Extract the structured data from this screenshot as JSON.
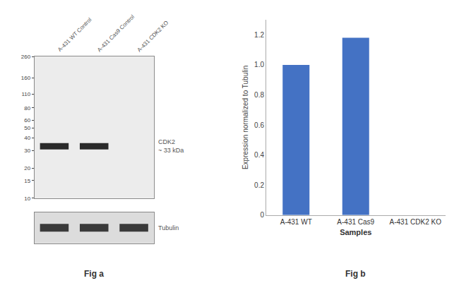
{
  "chart_data": [
    {
      "type": "blot",
      "title": "Fig a",
      "categories": [
        "A-431 WT Control",
        "A-431 Cas9 Control",
        "A-431 CDK2 KO"
      ],
      "ylim": [
        10,
        260
      ],
      "yticks": [
        260,
        160,
        110,
        80,
        60,
        50,
        40,
        30,
        20,
        15,
        10
      ],
      "log": "y",
      "grid": false,
      "series": [
        {
          "name": "CDK2\n~ 33 kDa",
          "values": [
            33,
            33,
            null
          ]
        }
      ],
      "annotations": [
        "Tubulin"
      ]
    },
    {
      "type": "bar",
      "title": "Fig b",
      "categories": [
        "A-431 WT",
        "A-431 Cas9",
        "A-431 CDK2 KO"
      ],
      "values": [
        1.0,
        1.18,
        0.0
      ],
      "color": "#4472C4",
      "xlabel": "Samples",
      "ylabel": "Expression normalized to Tubulin",
      "ylim": [
        0,
        1.3
      ],
      "yticks": [
        0,
        0.2,
        0.4,
        0.6,
        0.8,
        {
          "value": 1.0,
          "label": "1.0"
        },
        1.2
      ],
      "grid": false
    }
  ]
}
